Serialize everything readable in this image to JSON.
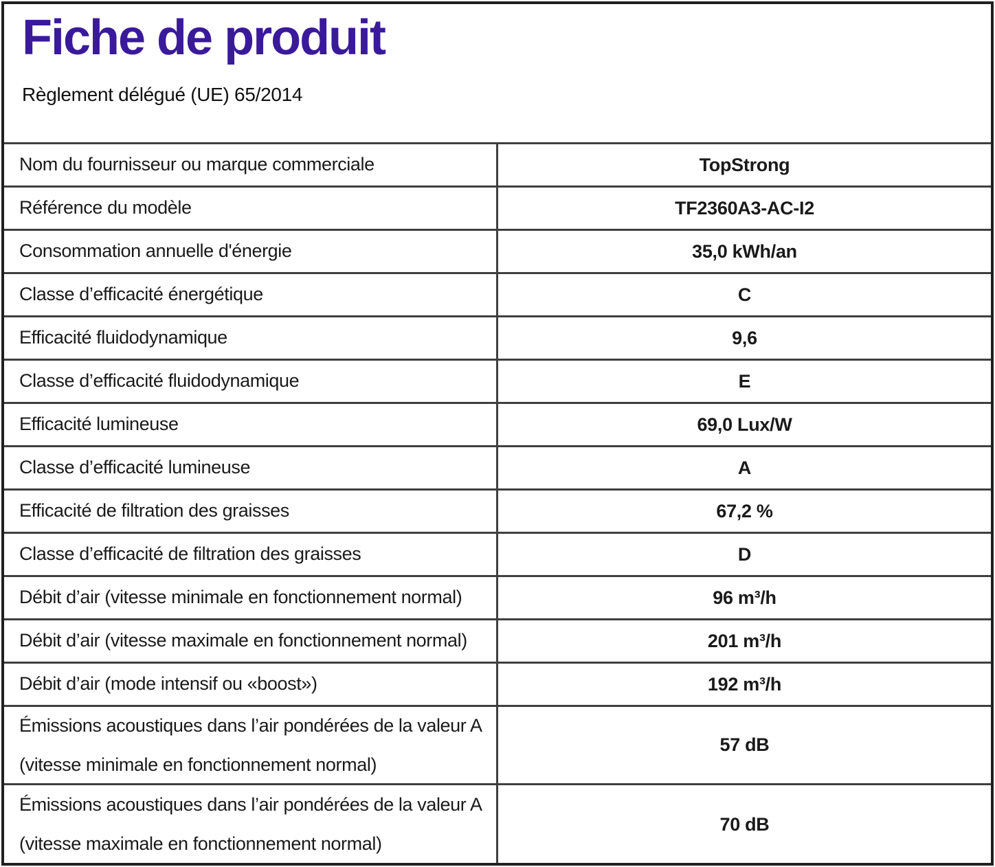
{
  "page": {
    "title": "Fiche de produit",
    "subtitle": "Règlement délégué (UE) 65/2014"
  },
  "colors": {
    "title": "#3a1a9b",
    "border": "#3f3f3f"
  },
  "table": {
    "rows": [
      {
        "label": "Nom du fournisseur ou marque commerciale",
        "value": "TopStrong"
      },
      {
        "label": "Référence du modèle",
        "value": "TF2360A3-AC-I2"
      },
      {
        "label": "Consommation annuelle d'énergie",
        "value": "35,0 kWh/an"
      },
      {
        "label": "Classe d’efficacité énergétique",
        "value": "C"
      },
      {
        "label": "Efficacité fluidodynamique",
        "value": "9,6"
      },
      {
        "label": "Classe d’efficacité fluidodynamique",
        "value": "E"
      },
      {
        "label": "Efficacité lumineuse",
        "value": "69,0 Lux/W"
      },
      {
        "label": "Classe d’efficacité lumineuse",
        "value": "A"
      },
      {
        "label": "Efficacité de filtration des graisses",
        "value": "67,2 %"
      },
      {
        "label": "Classe d’efficacité de filtration des graisses",
        "value": "D"
      },
      {
        "label": "Débit d’air (vitesse minimale en fonctionnement normal)",
        "value": "96 m³/h"
      },
      {
        "label": "Débit d’air (vitesse maximale en fonctionnement normal)",
        "value": "201 m³/h"
      },
      {
        "label": "Débit d’air (mode intensif ou «boost»)",
        "value": "192 m³/h"
      },
      {
        "label": "Émissions acoustiques dans l’air pondérées de la valeur A",
        "label2": "(vitesse minimale en fonctionnement normal)",
        "value": "57 dB"
      },
      {
        "label": "Émissions acoustiques dans l’air pondérées de la valeur A",
        "label2": "(vitesse maximale en fonctionnement normal)",
        "value": "70 dB"
      }
    ]
  }
}
